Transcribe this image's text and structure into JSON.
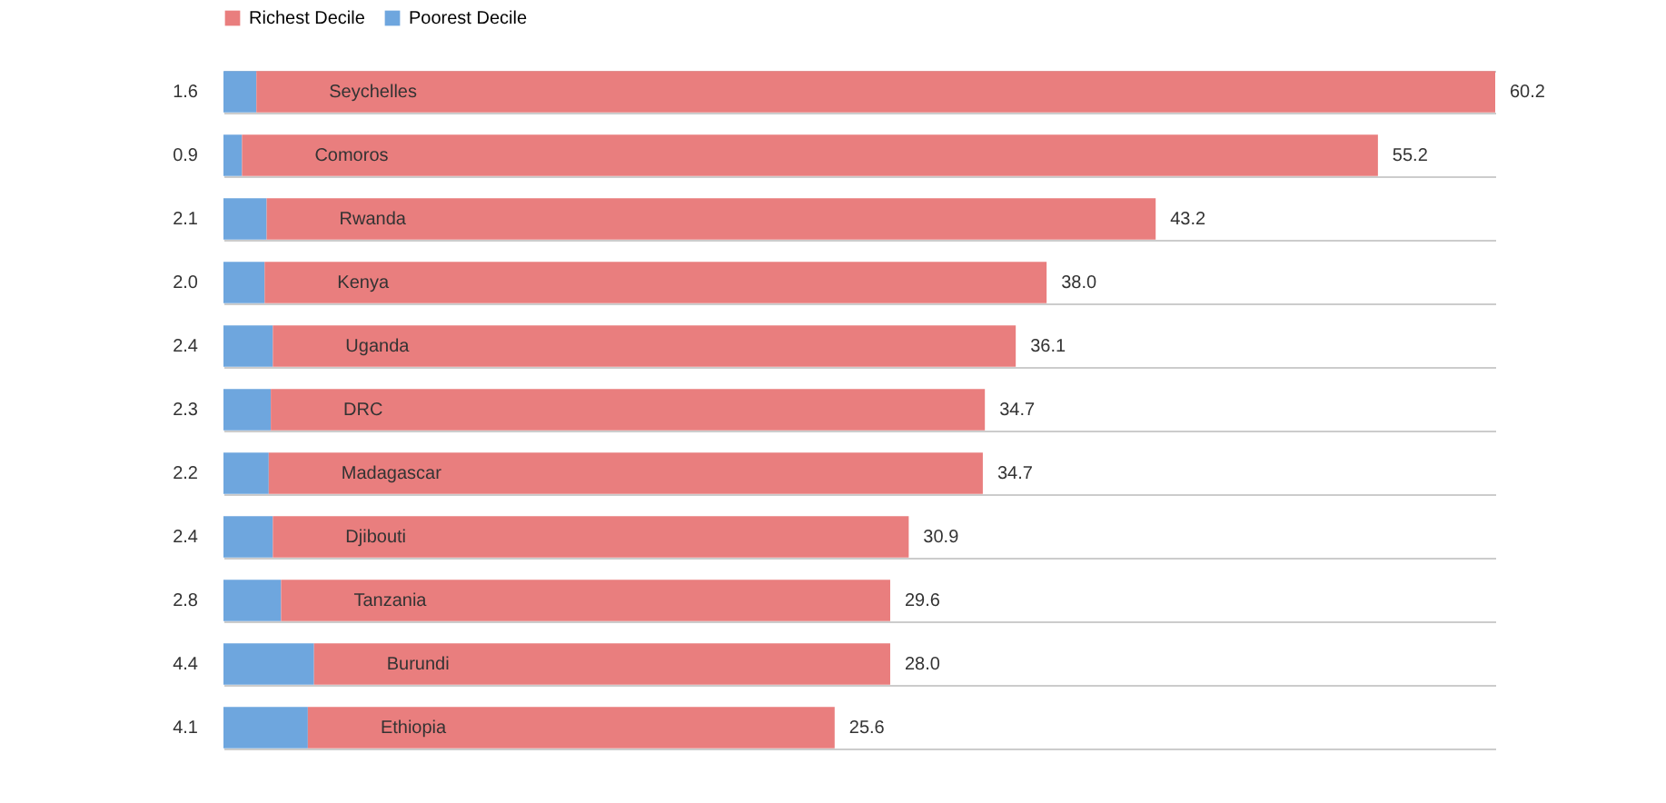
{
  "chart_data": {
    "type": "bar",
    "orientation": "horizontal",
    "stacked": true,
    "legend": "top",
    "grid": "y",
    "categories": [
      "Seychelles",
      "Comoros",
      "Rwanda",
      "Kenya",
      "Uganda",
      "DRC",
      "Madagascar",
      "Djibouti",
      "Tanzania",
      "Burundi",
      "Ethiopia"
    ],
    "series": [
      {
        "name": "Poorest Decile",
        "color": "#6ea6de",
        "values": [
          1.6,
          0.9,
          2.1,
          2.0,
          2.4,
          2.3,
          2.2,
          2.4,
          2.8,
          4.4,
          4.1
        ],
        "value_labels": [
          "1.6",
          "0.9",
          "2.1",
          "2.0",
          "2.4",
          "2.3",
          "2.2",
          "2.4",
          "2.8",
          "4.4",
          "4.1"
        ]
      },
      {
        "name": "Richest Decile",
        "color": "#e97e7e",
        "values": [
          60.2,
          55.2,
          43.2,
          38.0,
          36.1,
          34.7,
          34.7,
          30.9,
          29.6,
          28.0,
          25.6
        ],
        "value_labels": [
          "60.2",
          "55.2",
          "43.2",
          "38.0",
          "36.1",
          "34.7",
          "34.7",
          "30.9",
          "29.6",
          "28.0",
          "25.6"
        ]
      }
    ]
  }
}
